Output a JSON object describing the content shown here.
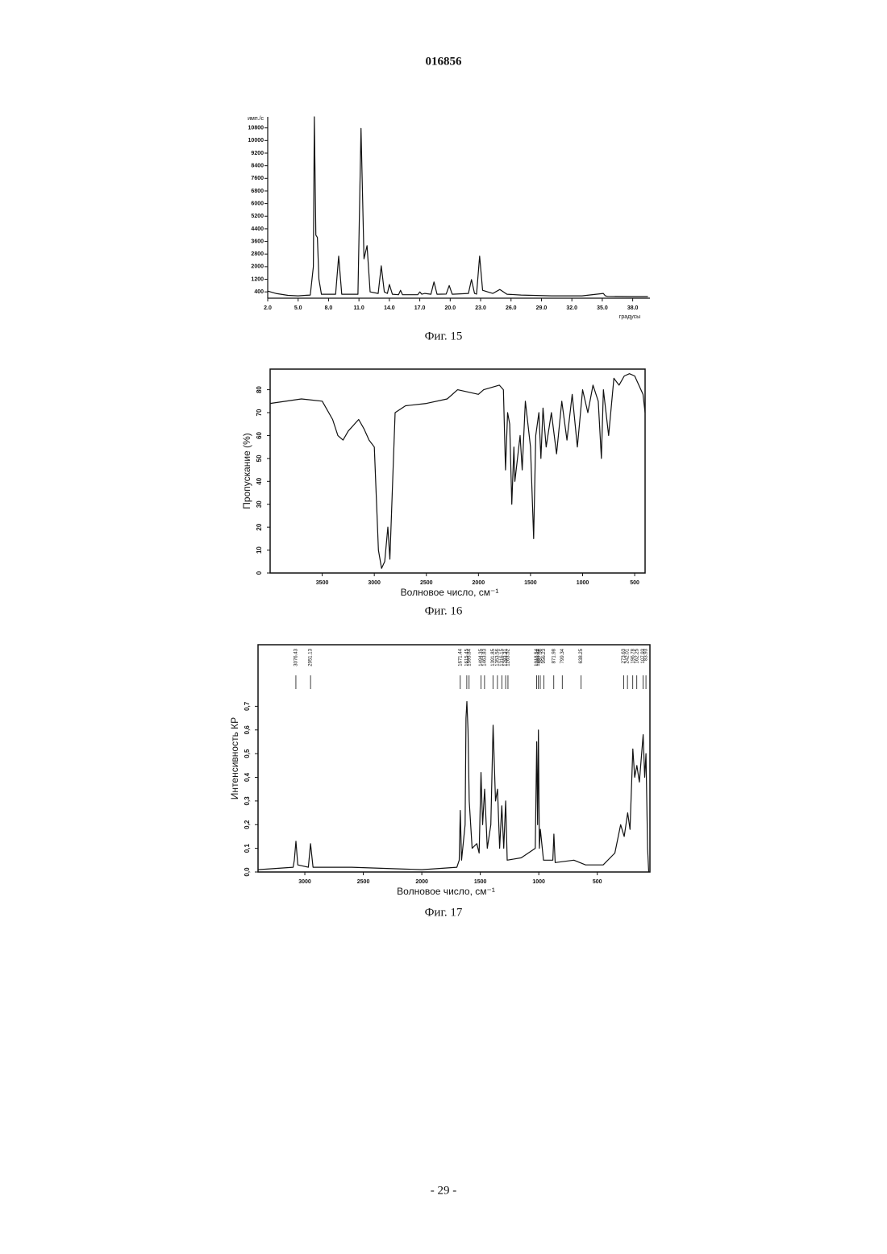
{
  "header": {
    "number": "016856"
  },
  "footer": {
    "page": "- 29 -"
  },
  "chart_data": [
    {
      "type": "line",
      "caption": "Фиг. 15",
      "ylabel": "имп./с",
      "xlabel": "градусы",
      "color": "#111",
      "x": [
        2,
        2.8,
        4,
        5,
        6.2,
        6.5,
        6.6,
        6.75,
        6.9,
        7.05,
        7.3,
        8.7,
        9.0,
        9.3,
        10.9,
        11.2,
        11.5,
        11.8,
        12.1,
        12.9,
        13.2,
        13.5,
        13.8,
        14.0,
        14.3,
        14.9,
        15.1,
        15.3,
        16.8,
        17.0,
        17.2,
        17.5,
        18.1,
        18.4,
        18.7,
        19.6,
        19.9,
        20.2,
        21.8,
        22.1,
        22.4,
        22.6,
        22.9,
        23.2,
        23.7,
        24.2,
        24.9,
        25.6,
        27,
        30,
        33,
        35.1,
        35.3,
        35.5,
        38,
        39.5
      ],
      "values": [
        450,
        300,
        180,
        150,
        200,
        2000,
        11500,
        4000,
        3850,
        1200,
        250,
        250,
        2670,
        250,
        250,
        10770,
        2500,
        3330,
        400,
        300,
        2050,
        400,
        300,
        870,
        250,
        220,
        500,
        220,
        220,
        400,
        250,
        300,
        250,
        1030,
        250,
        260,
        800,
        250,
        300,
        1180,
        300,
        260,
        2670,
        500,
        400,
        300,
        550,
        250,
        200,
        150,
        150,
        300,
        150,
        120,
        100,
        100
      ],
      "xlim": [
        2,
        39.7
      ],
      "ylim": [
        0,
        11500
      ],
      "xticks": [
        {
          "value": 2,
          "label": "2.0"
        },
        {
          "value": 5,
          "label": "5.0"
        },
        {
          "value": 8,
          "label": "8.0"
        },
        {
          "value": 11,
          "label": "11.0"
        },
        {
          "value": 14,
          "label": "14.0"
        },
        {
          "value": 17,
          "label": "17.0"
        },
        {
          "value": 20,
          "label": "20.0"
        },
        {
          "value": 23,
          "label": "23.0"
        },
        {
          "value": 26,
          "label": "26.0"
        },
        {
          "value": 29,
          "label": "29.0"
        },
        {
          "value": 32,
          "label": "32.0"
        },
        {
          "value": 35,
          "label": "35.0"
        },
        {
          "value": 38,
          "label": "38.0"
        }
      ],
      "yticks": [
        400,
        1200,
        2000,
        2800,
        3600,
        4400,
        5200,
        6000,
        6800,
        7600,
        8400,
        9200,
        10000,
        10800
      ]
    },
    {
      "type": "line",
      "caption": "Фиг. 16",
      "ylabel": "Пропускание (%)",
      "xlabel": "Волновое число, см⁻¹",
      "color": "#111",
      "x": [
        4000,
        3700,
        3500,
        3400,
        3350,
        3300,
        3250,
        3150,
        3100,
        3050,
        3000,
        2960,
        2930,
        2900,
        2870,
        2850,
        2800,
        2700,
        2500,
        2300,
        2200,
        2000,
        1950,
        1800,
        1760,
        1740,
        1720,
        1700,
        1680,
        1660,
        1650,
        1600,
        1580,
        1550,
        1500,
        1470,
        1450,
        1420,
        1400,
        1380,
        1350,
        1300,
        1250,
        1200,
        1150,
        1100,
        1050,
        1000,
        950,
        900,
        850,
        820,
        800,
        750,
        700,
        650,
        600,
        550,
        500,
        420,
        400
      ],
      "values": [
        74,
        76,
        75,
        67,
        60,
        58,
        62,
        67,
        63,
        58,
        55,
        10,
        2,
        5,
        20,
        6,
        70,
        73,
        74,
        76,
        80,
        78,
        80,
        82,
        80,
        45,
        70,
        65,
        30,
        55,
        40,
        60,
        45,
        75,
        55,
        15,
        60,
        70,
        50,
        72,
        55,
        70,
        52,
        75,
        58,
        78,
        55,
        80,
        70,
        82,
        75,
        50,
        80,
        60,
        85,
        82,
        86,
        87,
        86,
        78,
        70
      ],
      "xlim": [
        4000,
        400
      ],
      "ylim": [
        0,
        89
      ],
      "xticks": [
        3500,
        3000,
        2500,
        2000,
        1500,
        1000,
        500
      ],
      "yticks": [
        0,
        10,
        20,
        30,
        40,
        50,
        60,
        70,
        80
      ]
    },
    {
      "type": "line",
      "caption": "Фиг. 17",
      "ylabel": "Интенсивность КР",
      "xlabel": "Волновое число, см⁻¹",
      "color": "#111",
      "x": [
        3400,
        3100,
        3090,
        3076,
        3060,
        2970,
        2951,
        2930,
        2600,
        2000,
        1700,
        1680,
        1671,
        1660,
        1630,
        1622,
        1615,
        1605,
        1595,
        1570,
        1530,
        1510,
        1494,
        1480,
        1463,
        1440,
        1410,
        1391,
        1370,
        1353,
        1335,
        1316,
        1300,
        1283,
        1270,
        1150,
        1030,
        1018,
        1010,
        1003,
        995,
        987,
        960,
        880,
        871,
        860,
        700,
        600,
        450,
        350,
        300,
        270,
        240,
        220,
        196,
        180,
        162,
        140,
        108,
        95,
        84,
        70,
        60
      ],
      "values": [
        0.01,
        0.02,
        0.05,
        0.13,
        0.03,
        0.02,
        0.12,
        0.02,
        0.02,
        0.01,
        0.02,
        0.05,
        0.26,
        0.05,
        0.2,
        0.65,
        0.72,
        0.6,
        0.3,
        0.1,
        0.12,
        0.08,
        0.42,
        0.2,
        0.35,
        0.1,
        0.2,
        0.62,
        0.3,
        0.35,
        0.1,
        0.28,
        0.1,
        0.3,
        0.05,
        0.06,
        0.1,
        0.55,
        0.2,
        0.6,
        0.1,
        0.18,
        0.05,
        0.05,
        0.16,
        0.04,
        0.05,
        0.03,
        0.03,
        0.08,
        0.2,
        0.15,
        0.25,
        0.18,
        0.52,
        0.4,
        0.45,
        0.38,
        0.58,
        0.4,
        0.5,
        0.1,
        0
      ],
      "peak_labels": [
        3076.43,
        2951.13,
        1671.44,
        1615.45,
        1595.84,
        1494.35,
        1463.83,
        1391.85,
        1353.56,
        1316.15,
        1283.31,
        1263.52,
        1018.54,
        1003.84,
        987.56,
        956.23,
        871.98,
        799.34,
        638.25,
        273.63,
        242.01,
        196.78,
        162.25,
        107.93,
        83.93
      ],
      "xlim": [
        3400,
        50
      ],
      "ylim": [
        0,
        0.96
      ],
      "xticks": [
        3000,
        2500,
        2000,
        1500,
        1000,
        500
      ],
      "yticks": [
        {
          "value": 0,
          "label": "0,0"
        },
        {
          "value": 0.1,
          "label": "0,1"
        },
        {
          "value": 0.2,
          "label": "0,2"
        },
        {
          "value": 0.3,
          "label": "0,3"
        },
        {
          "value": 0.4,
          "label": "0,4"
        },
        {
          "value": 0.5,
          "label": "0,5"
        },
        {
          "value": 0.6,
          "label": "0,6"
        },
        {
          "value": 0.7,
          "label": "0,7"
        }
      ]
    }
  ]
}
